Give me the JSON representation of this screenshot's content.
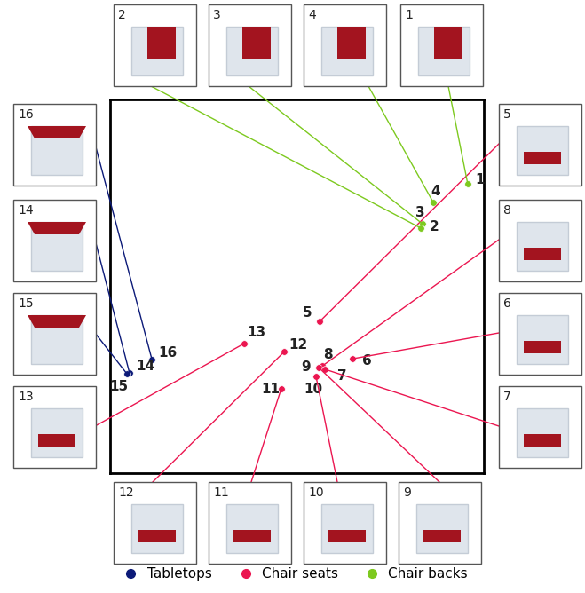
{
  "chart_data": {
    "type": "scatter",
    "xlim": [
      0,
      100
    ],
    "ylim": [
      0,
      100
    ],
    "tick_labels": false,
    "grid": false,
    "legend": "bottom",
    "series": [
      {
        "name": "Tabletops",
        "color": "#0c1a78",
        "marker": "circle",
        "x": [
          11.2,
          5.2,
          4.5
        ],
        "values": [
          30.4,
          26.8,
          26.6
        ],
        "labels": [
          "16",
          "14",
          "15"
        ]
      },
      {
        "name": "Chair seats",
        "color": "#eb1650",
        "marker": "circle",
        "x": [
          56.1,
          35.9,
          46.6,
          56.8,
          55.8,
          57.5,
          64.8,
          55.1,
          45.8
        ],
        "values": [
          40.6,
          34.7,
          32.5,
          28.7,
          28.3,
          27.8,
          30.6,
          25.9,
          22.6
        ],
        "labels": [
          "5",
          "13",
          "12",
          "8",
          "9",
          "7",
          "6",
          "10",
          "11"
        ]
      },
      {
        "name": "Chair backs",
        "color": "#7dc91f",
        "marker": "circle",
        "x": [
          95.7,
          86.5,
          83.6,
          83.1
        ],
        "values": [
          77.4,
          72.4,
          66.7,
          65.6
        ],
        "labels": [
          "1",
          "4",
          "3",
          "2"
        ]
      }
    ]
  }
}
